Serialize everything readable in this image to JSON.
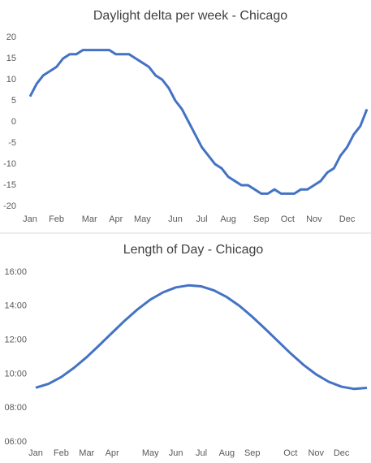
{
  "chart_data": [
    {
      "type": "line",
      "title": "Daylight delta per week - Chicago",
      "categories": [
        "Jan",
        null,
        null,
        null,
        "Feb",
        null,
        null,
        null,
        null,
        "Mar",
        null,
        null,
        null,
        "Apr",
        null,
        null,
        null,
        "May",
        null,
        null,
        null,
        null,
        "Jun",
        null,
        null,
        null,
        "Jul",
        null,
        null,
        null,
        "Aug",
        null,
        null,
        null,
        null,
        "Sep",
        null,
        null,
        null,
        "Oct",
        null,
        null,
        null,
        "Nov",
        null,
        null,
        null,
        null,
        "Dec",
        null,
        null,
        null
      ],
      "series": [
        {
          "color": "#4472c4",
          "values": [
            6,
            9,
            11,
            12,
            13,
            15,
            16,
            16,
            17,
            17,
            17,
            17,
            17,
            16,
            16,
            16,
            15,
            14,
            13,
            11,
            10,
            8,
            5,
            3,
            0,
            -3,
            -6,
            -8,
            -10,
            -11,
            -13,
            -14,
            -15,
            -15,
            -16,
            -17,
            -17,
            -16,
            -17,
            -17,
            -17,
            -16,
            -16,
            -15,
            -14,
            -12,
            -11,
            -8,
            -6,
            -3,
            -1,
            3
          ]
        }
      ],
      "ylim": [
        -20,
        20
      ],
      "yticks": [
        -20,
        -15,
        -10,
        -5,
        0,
        5,
        10,
        15,
        20
      ],
      "grid": false
    },
    {
      "type": "line",
      "title": "Length of Day - Chicago",
      "categories": [
        "Jan",
        null,
        "Feb",
        null,
        "Mar",
        null,
        "Apr",
        null,
        null,
        "May",
        null,
        "Jun",
        null,
        "Jul",
        null,
        "Aug",
        null,
        "Sep",
        null,
        null,
        "Oct",
        null,
        "Nov",
        null,
        "Dec",
        null,
        null
      ],
      "series": [
        {
          "color": "#4472c4",
          "values": [
            9.19,
            9.42,
            9.82,
            10.36,
            10.99,
            11.7,
            12.43,
            13.15,
            13.81,
            14.38,
            14.81,
            15.1,
            15.22,
            15.16,
            14.92,
            14.53,
            14.01,
            13.37,
            12.67,
            11.94,
            11.22,
            10.55,
            9.98,
            9.54,
            9.25,
            9.12,
            9.18
          ]
        }
      ],
      "ylim": [
        6,
        16
      ],
      "yticks": [
        {
          "value": 6,
          "label": "06:00"
        },
        {
          "value": 8,
          "label": "08:00"
        },
        {
          "value": 10,
          "label": "10:00"
        },
        {
          "value": 12,
          "label": "12:00"
        },
        {
          "value": 14,
          "label": "14:00"
        },
        {
          "value": 16,
          "label": "16:00"
        }
      ],
      "grid": false
    }
  ]
}
